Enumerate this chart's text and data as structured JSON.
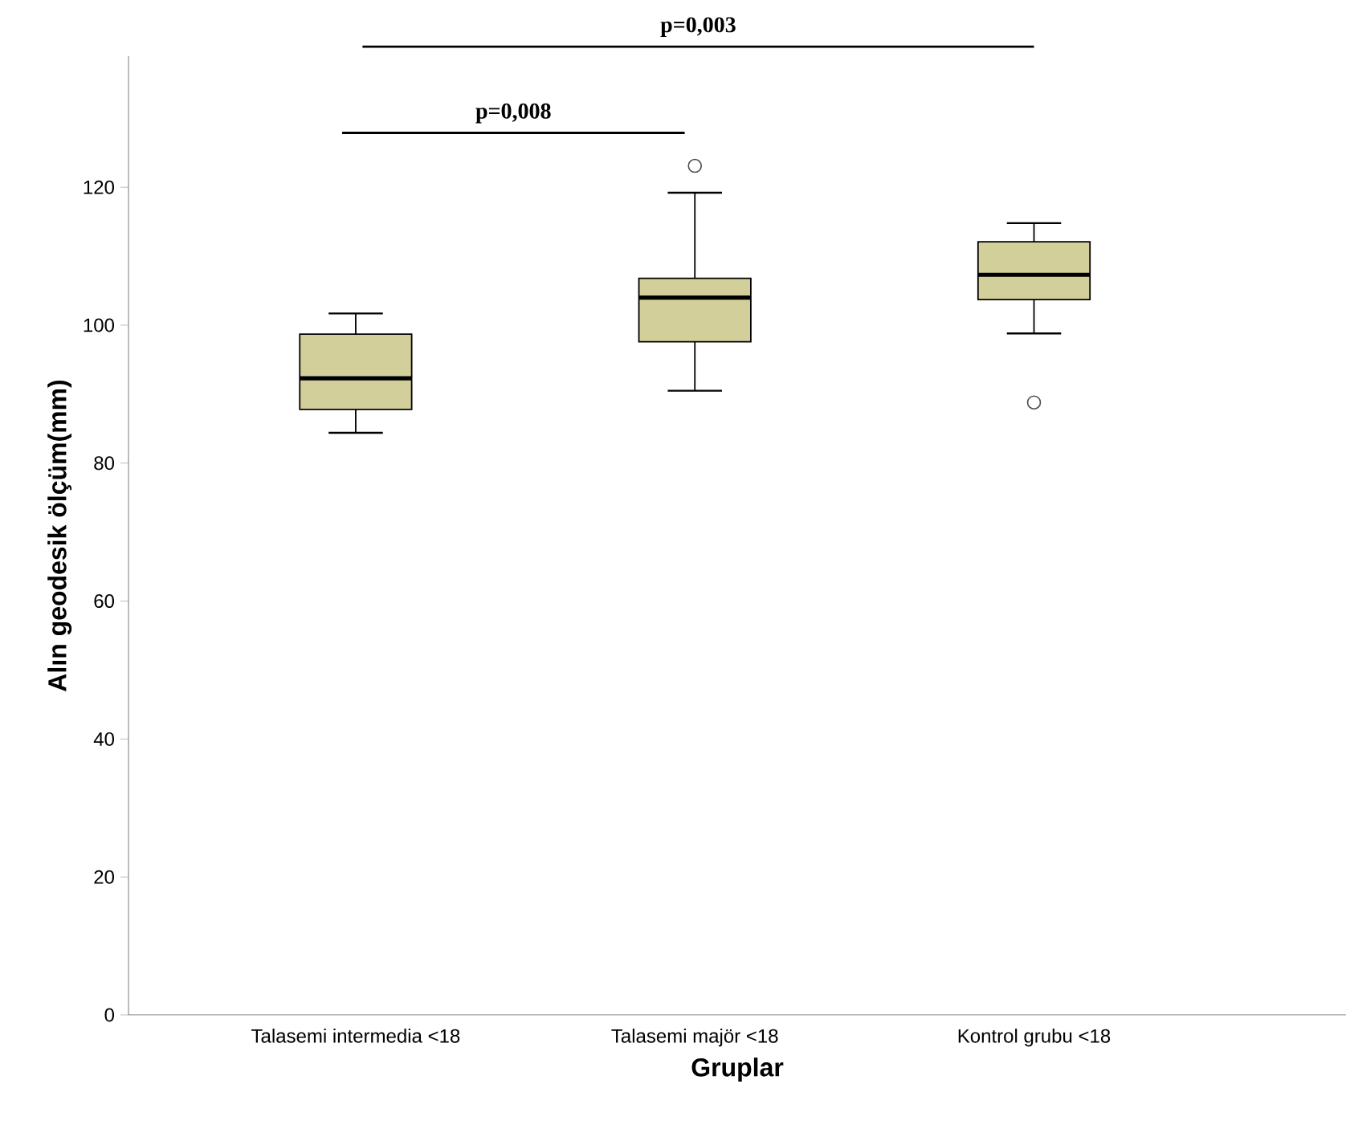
{
  "chart_data": {
    "type": "box",
    "xlabel": "Gruplar",
    "ylabel": "Alın geodesik ölçüm(mm)",
    "categories": [
      "Talasemi intermedia <18",
      "Talasemi majör <18",
      "Kontrol grubu <18"
    ],
    "boxes": [
      {
        "low": 84.4,
        "q1": 87.8,
        "median": 92.3,
        "q3": 98.7,
        "high": 101.7
      },
      {
        "low": 90.5,
        "q1": 97.6,
        "median": 104.0,
        "q3": 106.8,
        "high": 119.2,
        "outliers": [
          123.1
        ]
      },
      {
        "low": 98.8,
        "q1": 103.7,
        "median": 107.3,
        "q3": 112.1,
        "high": 114.8,
        "outliers": [
          88.8
        ]
      }
    ],
    "color": "#d3cf9b",
    "ylim": [
      0,
      139
    ],
    "yticks": [
      0,
      20,
      40,
      60,
      80,
      100,
      120
    ],
    "annotations": [
      "p=0,008",
      "p=0,003"
    ]
  }
}
